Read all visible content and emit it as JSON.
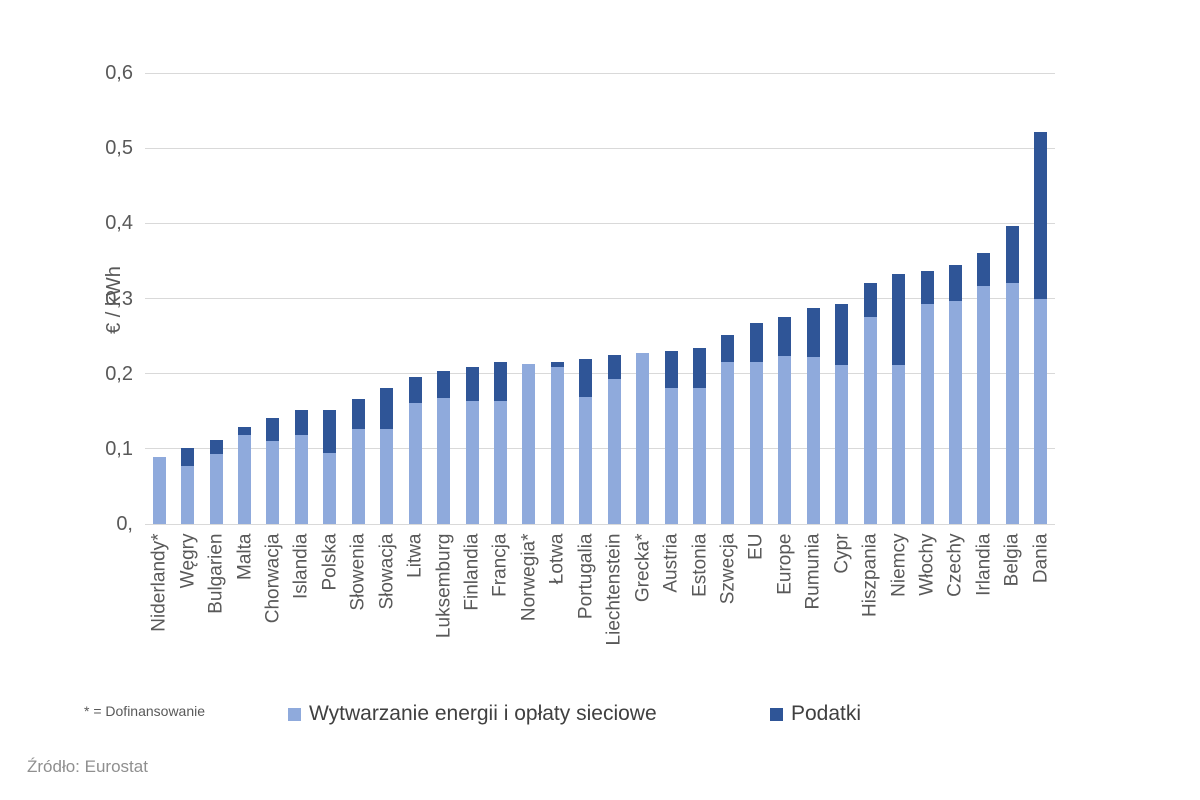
{
  "footnote": "* = Dofinansowanie",
  "source": "Źródło: Eurostat",
  "chart_data": {
    "type": "bar",
    "stacked": true,
    "title": "",
    "xlabel": "",
    "ylabel": "€ / kWh",
    "ylim": [
      0,
      0.6
    ],
    "ytick_step": 0.1,
    "ytick_labels": [
      "0,",
      "0,1",
      "0,2",
      "0,3",
      "0,4",
      "0,5",
      "0,6"
    ],
    "grid": true,
    "legend_position": "bottom",
    "categories": [
      "Niderlandy*",
      "Węgry",
      "Bulgarien",
      "Malta",
      "Chorwacja",
      "Islandia",
      "Polska",
      "Słowenia",
      "Słowacja",
      "Litwa",
      "Luksemburg",
      "Finlandia",
      "Francja",
      "Norwegia*",
      "Łotwa",
      "Portugalia",
      "Liechtenstein",
      "Grecka*",
      "Austria",
      "Estonia",
      "Szwecja",
      "EU",
      "Europe",
      "Rumunia",
      "Cypr",
      "Hiszpania",
      "Niemcy",
      "Włochy",
      "Czechy",
      "Irlandia",
      "Belgia",
      "Dania"
    ],
    "series": [
      {
        "name": "Wytwarzanie energii i opłaty sieciowe",
        "color": "#8FAADC",
        "values": [
          0.089,
          0.077,
          0.093,
          0.119,
          0.11,
          0.118,
          0.094,
          0.127,
          0.127,
          0.161,
          0.167,
          0.163,
          0.164,
          0.213,
          0.209,
          0.169,
          0.193,
          0.228,
          0.181,
          0.181,
          0.215,
          0.216,
          0.224,
          0.222,
          0.212,
          0.276,
          0.211,
          0.293,
          0.297,
          0.317,
          0.321,
          0.299
        ]
      },
      {
        "name": "Podatki",
        "color": "#2F5597",
        "values": [
          0,
          0.024,
          0.019,
          0.01,
          0.031,
          0.034,
          0.057,
          0.039,
          0.054,
          0.034,
          0.036,
          0.046,
          0.051,
          0,
          0.007,
          0.051,
          0.032,
          0,
          0.049,
          0.053,
          0.036,
          0.052,
          0.051,
          0.066,
          0.081,
          0.045,
          0.121,
          0.044,
          0.048,
          0.043,
          0.075,
          0.222
        ]
      }
    ],
    "colors": {
      "gridline": "#d9d9d9",
      "axis_text": "#595959",
      "series_light": "#8FAADC",
      "series_dark": "#2F5597"
    }
  }
}
